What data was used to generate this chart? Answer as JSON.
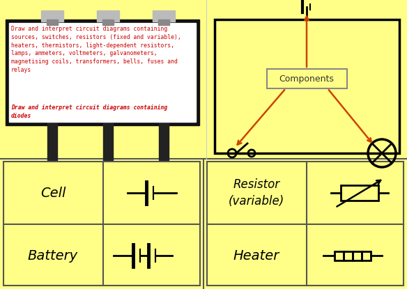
{
  "bg_color": "#FFFF88",
  "billboard_text1": "Draw and interpret circuit diagrams containing\nsources, switches, resistors (fixed and variable),\nheaters, thermistors, light-dependent resistors,\nlamps, ammeters, voltmeters, galvanometers,\nmagnetising coils, transformers, bells, fuses and\nrelays",
  "billboard_text2": "Draw and interpret circuit diagrams containing\ndiodes",
  "components_label": "Components",
  "cell_label": "Cell",
  "battery_label": "Battery",
  "resistor_var_label": "Resistor\n(variable)",
  "heater_label": "Heater",
  "arrow_color": "#CC4400",
  "circuit_color": "#000000",
  "grid_color": "#000000",
  "font_color_normal": "#CC0000",
  "font_color_bold": "#CC0000"
}
